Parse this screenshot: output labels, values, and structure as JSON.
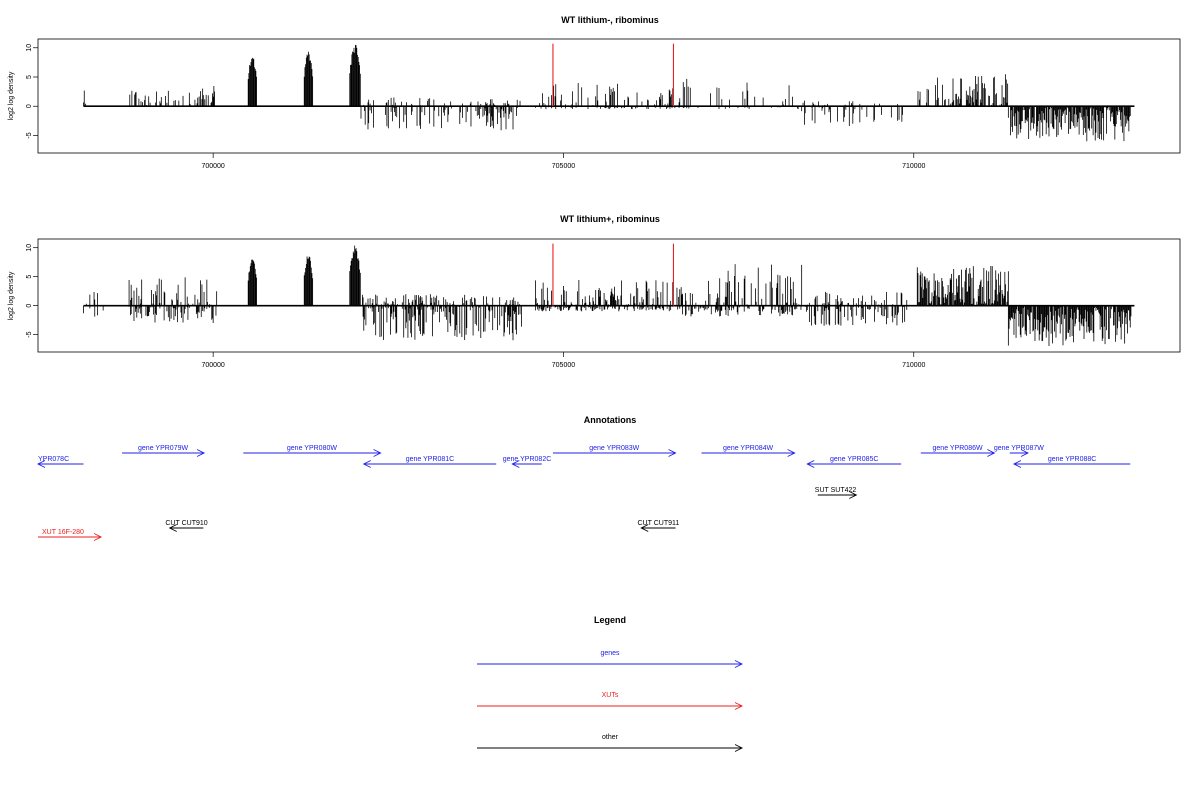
{
  "chart_data": [
    {
      "type": "bar",
      "title": "WT lithium-, ribominus",
      "ylabel": "log2 log density",
      "xlim": [
        697500,
        713800
      ],
      "ylim": [
        -8,
        11.5
      ],
      "yticks": [
        -5,
        0,
        5,
        10
      ],
      "xticks": [
        700000,
        705000,
        710000
      ],
      "markers": [
        704850,
        706570
      ],
      "bar_color": "#000000",
      "marker_color": "#e8201f",
      "profile_seed": 11,
      "profile": [
        {
          "start": 698150,
          "end": 698250,
          "max": 3.5,
          "min": 0,
          "density": 0.25
        },
        {
          "start": 698800,
          "end": 699800,
          "max": 3.0,
          "min": 0,
          "density": 0.3
        },
        {
          "start": 699800,
          "end": 700050,
          "max": 3.5,
          "min": 0,
          "density": 0.7
        },
        {
          "start": 700500,
          "end": 700620,
          "max": 8.8,
          "min": 0,
          "density": 1.0,
          "shape": "peak"
        },
        {
          "start": 701300,
          "end": 701420,
          "max": 9.6,
          "min": 0,
          "density": 1.0,
          "shape": "peak"
        },
        {
          "start": 701950,
          "end": 702100,
          "max": 10.7,
          "min": 0,
          "density": 1.0,
          "shape": "peak"
        },
        {
          "start": 702100,
          "end": 703800,
          "max": 1.5,
          "min": -4.0,
          "density": 0.5
        },
        {
          "start": 703800,
          "end": 704380,
          "max": 1.5,
          "min": -4.2,
          "density": 0.85
        },
        {
          "start": 704600,
          "end": 706700,
          "max": 4.0,
          "min": -0.5,
          "density": 0.45
        },
        {
          "start": 706700,
          "end": 708400,
          "max": 5.0,
          "min": -0.5,
          "density": 0.3
        },
        {
          "start": 708400,
          "end": 709200,
          "max": 1.0,
          "min": -3.5,
          "density": 0.45
        },
        {
          "start": 709200,
          "end": 709900,
          "max": 0.5,
          "min": -3.0,
          "density": 0.25
        },
        {
          "start": 710050,
          "end": 711350,
          "max": 5.5,
          "min": 0,
          "density": 0.65
        },
        {
          "start": 711350,
          "end": 713100,
          "max": 0,
          "min": -6.0,
          "density": 1.0
        }
      ]
    },
    {
      "type": "bar",
      "title": "WT lithium+, ribominus",
      "ylabel": "log2 log density",
      "xlim": [
        697500,
        713800
      ],
      "ylim": [
        -8,
        11.5
      ],
      "yticks": [
        -5,
        0,
        5,
        10
      ],
      "xticks": [
        700000,
        705000,
        710000
      ],
      "markers": [
        704850,
        706570
      ],
      "bar_color": "#000000",
      "marker_color": "#e8201f",
      "profile_seed": 29,
      "profile": [
        {
          "start": 698150,
          "end": 698450,
          "max": 3.0,
          "min": -2.0,
          "density": 0.3
        },
        {
          "start": 698800,
          "end": 700050,
          "max": 5.0,
          "min": -3.0,
          "density": 0.9
        },
        {
          "start": 700500,
          "end": 700620,
          "max": 8.5,
          "min": 0,
          "density": 1.0,
          "shape": "peak"
        },
        {
          "start": 701300,
          "end": 701420,
          "max": 9.5,
          "min": 0,
          "density": 1.0,
          "shape": "peak"
        },
        {
          "start": 701950,
          "end": 702100,
          "max": 10.5,
          "min": 0,
          "density": 1.0,
          "shape": "peak"
        },
        {
          "start": 702100,
          "end": 704400,
          "max": 2.0,
          "min": -6.0,
          "density": 0.85
        },
        {
          "start": 704600,
          "end": 706700,
          "max": 4.5,
          "min": -1.0,
          "density": 0.9
        },
        {
          "start": 706700,
          "end": 708400,
          "max": 7.3,
          "min": -2.0,
          "density": 0.75
        },
        {
          "start": 708400,
          "end": 709900,
          "max": 2.5,
          "min": -3.5,
          "density": 0.6
        },
        {
          "start": 710050,
          "end": 711350,
          "max": 7.0,
          "min": 0,
          "density": 1.0
        },
        {
          "start": 711350,
          "end": 713100,
          "max": 0,
          "min": -7.0,
          "density": 1.0
        }
      ]
    }
  ],
  "annotations": {
    "title": "Annotations",
    "features": [
      {
        "label": "YPR078C",
        "strand": "-",
        "cls": "gene",
        "x1": 697500,
        "x2": 698150,
        "row": 1
      },
      {
        "label": "gene YPR079W",
        "strand": "+",
        "cls": "gene",
        "x1": 698700,
        "x2": 699870,
        "row": 0
      },
      {
        "label": "gene YPR080W",
        "strand": "+",
        "cls": "gene",
        "x1": 700430,
        "x2": 702390,
        "row": 0
      },
      {
        "label": "gene YPR081C",
        "strand": "-",
        "cls": "gene",
        "x1": 702150,
        "x2": 704040,
        "row": 1
      },
      {
        "label": "gene YPR082C",
        "strand": "-",
        "cls": "gene",
        "x1": 704270,
        "x2": 704690,
        "row": 1
      },
      {
        "label": "gene YPR083W",
        "strand": "+",
        "cls": "gene",
        "x1": 704850,
        "x2": 706600,
        "row": 0
      },
      {
        "label": "gene YPR084W",
        "strand": "+",
        "cls": "gene",
        "x1": 706970,
        "x2": 708300,
        "row": 0
      },
      {
        "label": "gene YPR085C",
        "strand": "-",
        "cls": "gene",
        "x1": 708480,
        "x2": 709820,
        "row": 1
      },
      {
        "label": "gene YPR086W",
        "strand": "+",
        "cls": "gene",
        "x1": 710100,
        "x2": 711150,
        "row": 0
      },
      {
        "label": "gene YPR087W",
        "strand": "+",
        "cls": "gene",
        "x1": 711370,
        "x2": 711630,
        "row": 0
      },
      {
        "label": "gene YPR088C",
        "strand": "-",
        "cls": "gene",
        "x1": 711430,
        "x2": 713090,
        "row": 1
      },
      {
        "label": "SUT SUT422",
        "strand": "+",
        "cls": "other",
        "x1": 708630,
        "x2": 709180,
        "row": 2
      },
      {
        "label": "CUT CUT910",
        "strand": "-",
        "cls": "other",
        "x1": 699380,
        "x2": 699860,
        "row": 3
      },
      {
        "label": "CUT CUT911",
        "strand": "-",
        "cls": "other",
        "x1": 706110,
        "x2": 706600,
        "row": 3
      },
      {
        "label": "XUT 16F-280",
        "strand": "+",
        "cls": "xut",
        "x1": 697500,
        "x2": 698400,
        "row": 4
      }
    ]
  },
  "legend": {
    "title": "Legend",
    "items": [
      {
        "label": "genes",
        "color": "#2020e8"
      },
      {
        "label": "XUTs",
        "color": "#e8201f"
      },
      {
        "label": "other",
        "color": "#000000"
      }
    ]
  },
  "colors": {
    "gene": "#2020e8",
    "xut": "#e8201f",
    "other": "#000000"
  }
}
